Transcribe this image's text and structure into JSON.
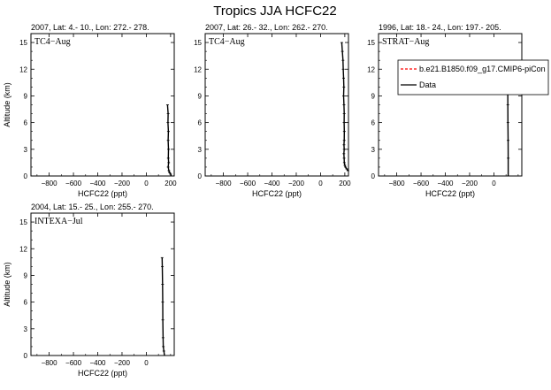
{
  "figure": {
    "title": "Tropics JJA HCFC22"
  },
  "legend": {
    "entries": [
      {
        "name": "b.e21.B1850.f09_g17.CMIP6-piCon",
        "color": "#ff0000",
        "style": "dashed"
      },
      {
        "name": "Data",
        "color": "#000000",
        "style": "solid"
      }
    ]
  },
  "chart_data": [
    {
      "type": "line",
      "title": "2007, Lat: 4.- 10., Lon: 272.- 278.",
      "tag": "TC4−Aug",
      "xlabel": "HCFC22 (ppt)",
      "ylabel": "Altitude (km)",
      "xlim": [
        -950,
        230
      ],
      "ylim": [
        0,
        16
      ],
      "xticks": [
        -800,
        -600,
        -400,
        -200,
        0,
        200
      ],
      "xticklabels": [
        "−800",
        "−600",
        "−400",
        "−200",
        "0",
        "200"
      ],
      "yticks": [
        0,
        3,
        6,
        9,
        12,
        15
      ],
      "yticklabels": [
        "0",
        "3",
        "6",
        "9",
        "12",
        "15"
      ],
      "grid": false,
      "series": [
        {
          "name": "Data",
          "color": "#000000",
          "x": [
            175,
            180,
            178,
            182,
            180,
            183,
            181,
            184,
            180,
            186,
            190,
            200,
            205
          ],
          "y": [
            8.0,
            7.0,
            6.0,
            5.0,
            4.0,
            3.0,
            2.0,
            1.5,
            1.0,
            0.6,
            0.4,
            0.2,
            0.0
          ]
        }
      ]
    },
    {
      "type": "line",
      "title": "2007, Lat: 26.- 32., Lon: 262.- 270.",
      "tag": "TC4−Aug",
      "xlabel": "HCFC22 (ppt)",
      "ylabel": "",
      "xlim": [
        -950,
        230
      ],
      "ylim": [
        0,
        16
      ],
      "xticks": [
        -800,
        -600,
        -400,
        -200,
        0,
        200
      ],
      "xticklabels": [
        "−800",
        "−600",
        "−400",
        "−200",
        "0",
        "200"
      ],
      "yticks": [
        0,
        3,
        6,
        9,
        12,
        15
      ],
      "yticklabels": [
        "0",
        "3",
        "6",
        "9",
        "12",
        "15"
      ],
      "grid": false,
      "series": [
        {
          "name": "Data",
          "color": "#000000",
          "x": [
            175,
            180,
            185,
            187,
            190,
            192,
            190,
            193,
            195,
            194,
            196,
            195,
            193,
            195,
            192,
            194,
            196,
            200,
            205,
            215,
            225
          ],
          "y": [
            15.0,
            14.0,
            13.0,
            12.0,
            11.0,
            10.0,
            9.0,
            8.0,
            7.0,
            6.0,
            5.0,
            4.0,
            3.5,
            3.0,
            2.5,
            2.0,
            1.5,
            1.2,
            1.0,
            0.8,
            0.6
          ]
        }
      ]
    },
    {
      "type": "line",
      "title": "1996, Lat: 18.- 24., Lon: 197.- 205.",
      "tag": "STRAT−Aug",
      "xlabel": "HCFC22 (ppt)",
      "ylabel": "",
      "xlim": [
        -950,
        230
      ],
      "ylim": [
        0,
        16
      ],
      "xticks": [
        -800,
        -600,
        -400,
        -200,
        0
      ],
      "xticklabels": [
        "−800",
        "−600",
        "−400",
        "−200",
        "0"
      ],
      "yticks": [
        0,
        3,
        6,
        9,
        12,
        15
      ],
      "yticklabels": [
        "0",
        "3",
        "6",
        "9",
        "12",
        "15"
      ],
      "grid": false,
      "series": [
        {
          "name": "Data",
          "color": "#000000",
          "x": [
            110,
            112,
            114,
            115,
            116,
            117,
            118,
            118
          ],
          "y": [
            12.0,
            11.0,
            10.0,
            8.0,
            6.0,
            4.0,
            2.0,
            0.0
          ]
        }
      ]
    },
    {
      "type": "line",
      "title": "2004, Lat: 15.- 25., Lon: 255.- 270.",
      "tag": "INTEXA−Jul",
      "xlabel": "HCFC22 (ppt)",
      "ylabel": "Altitude (km)",
      "xlim": [
        -950,
        230
      ],
      "ylim": [
        0,
        16
      ],
      "xticks": [
        -800,
        -600,
        -400,
        -200,
        0
      ],
      "xticklabels": [
        "−800",
        "−600",
        "−400",
        "−200",
        "0"
      ],
      "yticks": [
        0,
        3,
        6,
        9,
        12,
        15
      ],
      "yticklabels": [
        "0",
        "3",
        "6",
        "9",
        "12",
        "15"
      ],
      "grid": false,
      "series": [
        {
          "name": "Data",
          "color": "#000000",
          "x": [
            130,
            132,
            134,
            135,
            136,
            138,
            140,
            145,
            150
          ],
          "y": [
            11.0,
            10.0,
            8.0,
            6.0,
            4.0,
            2.0,
            1.0,
            0.5,
            0.0
          ]
        }
      ]
    }
  ]
}
